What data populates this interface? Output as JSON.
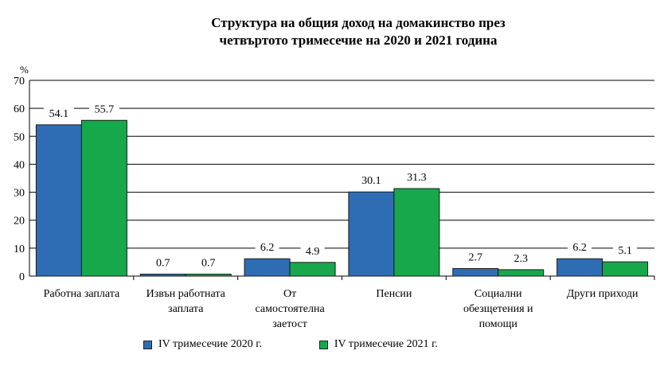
{
  "chart_data": {
    "type": "bar",
    "title": "Структура на общия доход на домакинство през\nчетвъртото тримесечие на 2020 и 2021 година",
    "ylabel": "%",
    "ylim": [
      0,
      70
    ],
    "yticks": [
      0,
      10,
      20,
      30,
      40,
      50,
      60,
      70
    ],
    "grid": true,
    "legend_position": "bottom",
    "categories": [
      "Работна заплата",
      "Извън работната заплата",
      "От самостоятелна заетост",
      "Пенсии",
      "Социални обезщетения и помощи",
      "Други приходи"
    ],
    "category_lines": [
      [
        "Работна заплата"
      ],
      [
        "Извън работната",
        "заплата"
      ],
      [
        "От",
        "самостоятелна",
        "заетост"
      ],
      [
        "Пенсии"
      ],
      [
        "Социални",
        "обезщетения и",
        "помощи"
      ],
      [
        "Други приходи"
      ]
    ],
    "series": [
      {
        "name": "IV  тримесечие 2020 г.",
        "color": "#2e6db4",
        "values": [
          54.1,
          0.7,
          6.2,
          30.1,
          2.7,
          6.2
        ],
        "labels": [
          "54.1",
          "0.7",
          "6.2",
          "30.1",
          "2.7",
          "6.2"
        ]
      },
      {
        "name": "IV  тримесечие 2021 г.",
        "color": "#18a84c",
        "values": [
          55.7,
          0.7,
          4.9,
          31.3,
          2.3,
          5.1
        ],
        "labels": [
          "55.7",
          "0.7",
          "4.9",
          "31.3",
          "2.3",
          "5.1"
        ]
      }
    ]
  }
}
